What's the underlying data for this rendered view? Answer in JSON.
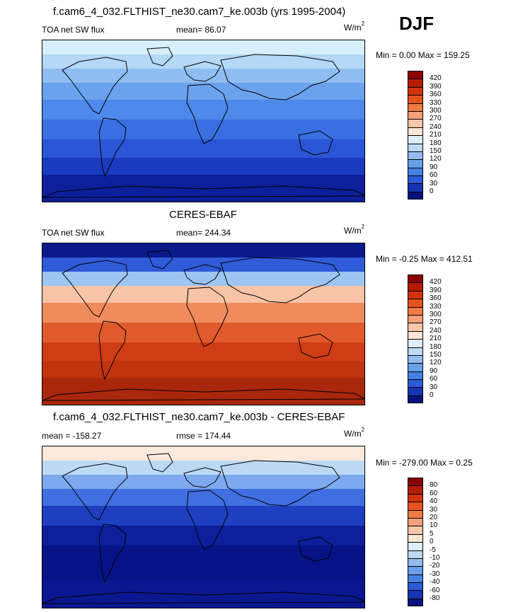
{
  "header": {
    "main_title": "f.cam6_4_032.FLTHIST_ne30.cam7_ke.003b (yrs 1995-2004)",
    "season": "DJF"
  },
  "panels": [
    {
      "id": "model",
      "title": "",
      "left_label": "TOA net SW flux",
      "center_label": "mean=  86.07",
      "units": "W/m",
      "units_sup": "2",
      "minmax": "Min =   0.00 Max = 159.25",
      "colors": [
        "#d7eefb",
        "#b4d8f6",
        "#8fbdf2",
        "#6aa2ee",
        "#4d88ea",
        "#3a6fe2",
        "#2a55d6",
        "#1a3bbf",
        "#0d1f9a"
      ],
      "colorbar": {
        "labels": [
          "420",
          "390",
          "360",
          "330",
          "300",
          "270",
          "240",
          "210",
          "180",
          "150",
          "120",
          "90",
          "60",
          "30",
          "0"
        ],
        "colors": [
          "#8b0000",
          "#b51c02",
          "#d3320a",
          "#e6531e",
          "#f27b45",
          "#f6a07a",
          "#f8c7aa",
          "#fbe6d6",
          "#dfeefb",
          "#bcdaf5",
          "#93bdf0",
          "#6a9fea",
          "#4680e4",
          "#2c5bd8",
          "#1535b4",
          "#06127d"
        ]
      }
    },
    {
      "id": "obs",
      "title": "CERES-EBAF",
      "left_label": "TOA net SW flux",
      "center_label": "mean= 244.34",
      "units": "W/m",
      "units_sup": "2",
      "minmax": "Min =  -0.25 Max = 412.51",
      "colors": [
        "#0b1a8a",
        "#2f5bd8",
        "#9cc5f2",
        "#f8c4a6",
        "#f08b5e",
        "#e15a2c",
        "#cf3d14",
        "#c03410",
        "#a9270c"
      ],
      "colorbar": {
        "labels": [
          "420",
          "390",
          "360",
          "330",
          "300",
          "270",
          "240",
          "210",
          "180",
          "150",
          "120",
          "90",
          "60",
          "30",
          "0"
        ],
        "colors": [
          "#8b0000",
          "#b51c02",
          "#d3320a",
          "#e6531e",
          "#f27b45",
          "#f6a07a",
          "#f8c7aa",
          "#fbe6d6",
          "#dfeefb",
          "#bcdaf5",
          "#93bdf0",
          "#6a9fea",
          "#4680e4",
          "#2c5bd8",
          "#1535b4",
          "#06127d"
        ]
      }
    },
    {
      "id": "diff",
      "title": "f.cam6_4_032.FLTHIST_ne30.cam7_ke.003b - CERES-EBAF",
      "left_label": "mean = -158.27",
      "center_label": "rmse = 174.44",
      "units": "W/m",
      "units_sup": "2",
      "minmax": "Min = -279.00 Max =   0.25",
      "colors": [
        "#fbe9dc",
        "#bcd9f4",
        "#7ea9ee",
        "#3f6fe0",
        "#1e3fc0",
        "#0c1e99",
        "#071386",
        "#071386",
        "#0a1790"
      ],
      "colorbar": {
        "labels": [
          "80",
          "60",
          "40",
          "30",
          "20",
          "10",
          "5",
          "0",
          "-5",
          "-10",
          "-20",
          "-30",
          "-40",
          "-60",
          "-80"
        ],
        "colors": [
          "#8b0000",
          "#b51c02",
          "#d3320a",
          "#e6531e",
          "#f27b45",
          "#f6a07a",
          "#f8c7aa",
          "#fbe6d6",
          "#dfeefb",
          "#bcdaf5",
          "#93bdf0",
          "#6a9fea",
          "#4680e4",
          "#2c5bd8",
          "#1535b4",
          "#06127d"
        ]
      }
    }
  ],
  "chart_data": [
    {
      "type": "heatmap",
      "title": "f.cam6_4_032.FLTHIST_ne30.cam7_ke.003b (yrs 1995-2004)",
      "variable": "TOA net SW flux",
      "units": "W/m2",
      "season": "DJF",
      "mean": 86.07,
      "min": 0.0,
      "max": 159.25,
      "contour_levels": [
        0,
        30,
        60,
        90,
        120,
        150,
        180,
        210,
        240,
        270,
        300,
        330,
        360,
        390,
        420
      ]
    },
    {
      "type": "heatmap",
      "title": "CERES-EBAF",
      "variable": "TOA net SW flux",
      "units": "W/m2",
      "mean": 244.34,
      "min": -0.25,
      "max": 412.51,
      "contour_levels": [
        0,
        30,
        60,
        90,
        120,
        150,
        180,
        210,
        240,
        270,
        300,
        330,
        360,
        390,
        420
      ]
    },
    {
      "type": "heatmap",
      "title": "f.cam6_4_032.FLTHIST_ne30.cam7_ke.003b - CERES-EBAF",
      "units": "W/m2",
      "mean": -158.27,
      "rmse": 174.44,
      "min": -279.0,
      "max": 0.25,
      "contour_levels": [
        -80,
        -60,
        -40,
        -30,
        -20,
        -10,
        -5,
        0,
        5,
        10,
        20,
        30,
        40,
        60,
        80
      ]
    }
  ]
}
